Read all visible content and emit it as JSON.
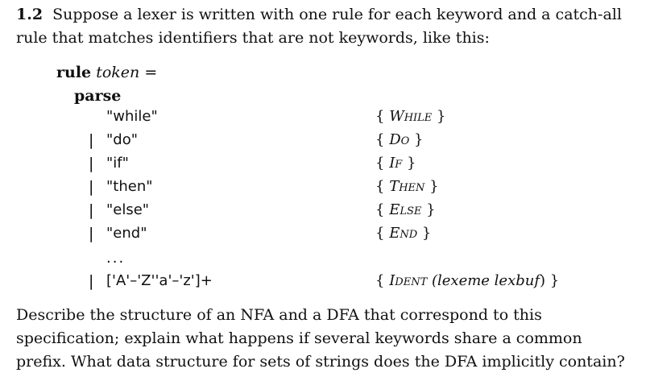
{
  "exercise": {
    "number": "1.2",
    "intro": "Suppose a lexer is written with one rule for each keyword and a catch-all rule that matches identifiers that are not keywords, like this:",
    "code": {
      "rule_keyword": "rule",
      "rule_name": "token",
      "equals": "=",
      "parse_keyword": "parse",
      "separator": "|",
      "ellipsis": "...",
      "rules": [
        {
          "pattern": "\"while\"",
          "has_bar": false,
          "action_open": "{ ",
          "token": "While",
          "action_rest": "",
          "action_close": " }"
        },
        {
          "pattern": "\"do\"",
          "has_bar": true,
          "action_open": "{ ",
          "token": "Do",
          "action_rest": "",
          "action_close": " }"
        },
        {
          "pattern": "\"if\"",
          "has_bar": true,
          "action_open": "{ ",
          "token": "If",
          "action_rest": "",
          "action_close": " }"
        },
        {
          "pattern": "\"then\"",
          "has_bar": true,
          "action_open": "{ ",
          "token": "Then",
          "action_rest": "",
          "action_close": " }"
        },
        {
          "pattern": "\"else\"",
          "has_bar": true,
          "action_open": "{ ",
          "token": "Else",
          "action_rest": "",
          "action_close": " }"
        },
        {
          "pattern": "\"end\"",
          "has_bar": true,
          "action_open": "{ ",
          "token": "End",
          "action_rest": "",
          "action_close": " }"
        }
      ],
      "catch_all": {
        "pattern": "['A'–'Z''a'–'z']+",
        "action_open": "{ ",
        "token": "Ident",
        "action_rest": " (lexeme lexbuf",
        "action_close": ") }"
      }
    },
    "outro": "Describe the structure of an NFA and a DFA that correspond to this specification; explain what happens if several keywords share a common prefix. What data structure for sets of strings does the DFA implicitly contain?"
  }
}
